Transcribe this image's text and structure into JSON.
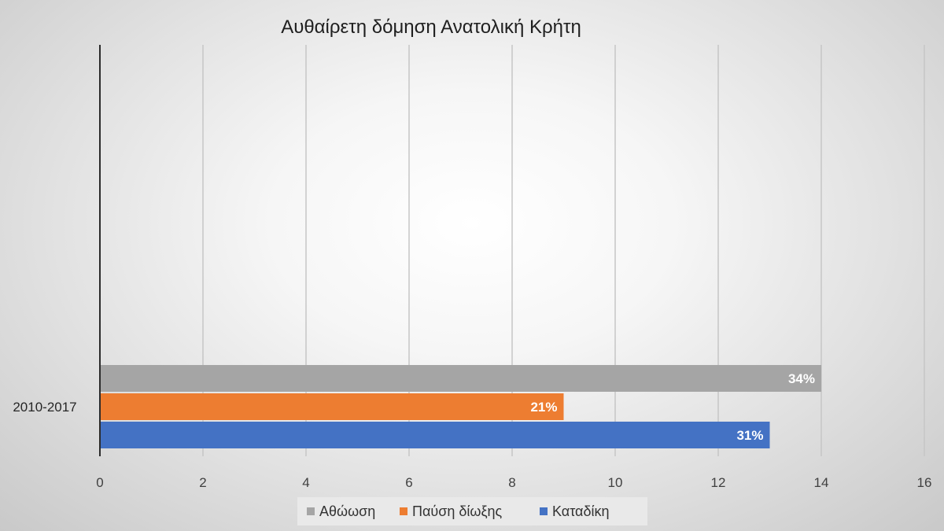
{
  "chart_data": {
    "type": "bar",
    "orientation": "horizontal",
    "title": "Αυθαίρετη δόμηση Ανατολική Κρήτη",
    "categories": [
      "2010-2017"
    ],
    "series": [
      {
        "name": "Αθώωση",
        "values": [
          14
        ],
        "labels": [
          "34%"
        ],
        "color": "#a5a5a5"
      },
      {
        "name": "Παύση δίωξης",
        "values": [
          9
        ],
        "labels": [
          "21%"
        ],
        "color": "#ed7d31"
      },
      {
        "name": "Καταδίκη",
        "values": [
          13
        ],
        "labels": [
          "31%"
        ],
        "color": "#4472c4"
      }
    ],
    "xlim": [
      0,
      16
    ],
    "xticks": [
      "0",
      "2",
      "4",
      "6",
      "8",
      "10",
      "12",
      "14",
      "16"
    ],
    "grid": true,
    "legend_position": "bottom"
  }
}
